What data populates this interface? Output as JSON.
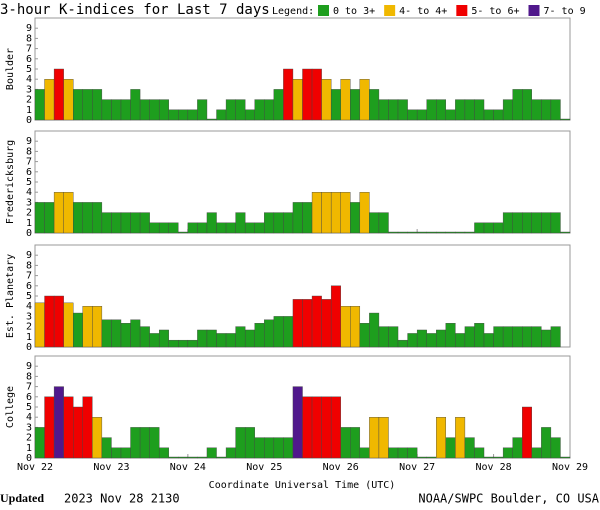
{
  "chart_data": {
    "type": "bar",
    "title": "3-hour K-indices for Last 7 days",
    "legend_title": "Legend:",
    "legend": [
      {
        "label": "0 to 3+",
        "color": "#1e9e1e"
      },
      {
        "label": "4- to 4+",
        "color": "#f0b800"
      },
      {
        "label": "5- to 6+",
        "color": "#f00000"
      },
      {
        "label": "7- to 9",
        "color": "#50188c"
      }
    ],
    "xlabel": "Coordinate Universal Time (UTC)",
    "xlim": [
      0,
      56
    ],
    "xticks": [
      {
        "value": 0,
        "label": "Nov 22"
      },
      {
        "value": 8,
        "label": "Nov 23"
      },
      {
        "value": 16,
        "label": "Nov 24"
      },
      {
        "value": 24,
        "label": "Nov 25"
      },
      {
        "value": 32,
        "label": "Nov 26"
      },
      {
        "value": 40,
        "label": "Nov 27"
      },
      {
        "value": 48,
        "label": "Nov 28"
      },
      {
        "value": 56,
        "label": "Nov 29"
      }
    ],
    "ylim": [
      0,
      10
    ],
    "yticks": [
      0,
      1,
      2,
      3,
      4,
      5,
      6,
      7,
      8,
      9
    ],
    "series": [
      {
        "name": "Boulder",
        "values": [
          3,
          4,
          5,
          4,
          3,
          3,
          3,
          2,
          2,
          2,
          3,
          2,
          2,
          2,
          1,
          1,
          1,
          2,
          0,
          1,
          2,
          2,
          1,
          2,
          2,
          3,
          5,
          4,
          5,
          5,
          4,
          3,
          4,
          3,
          4,
          3,
          2,
          2,
          2,
          1,
          1,
          2,
          2,
          1,
          2,
          2,
          2,
          1,
          1,
          2,
          3,
          3,
          2,
          2,
          2,
          0
        ]
      },
      {
        "name": "Fredericksburg",
        "values": [
          3,
          3,
          4,
          4,
          3,
          3,
          3,
          2,
          2,
          2,
          2,
          2,
          1,
          1,
          1,
          0,
          1,
          1,
          2,
          1,
          1,
          2,
          1,
          1,
          2,
          2,
          2,
          3,
          3,
          4,
          4,
          4,
          4,
          3,
          4,
          2,
          2,
          0,
          0,
          0,
          0,
          0,
          0,
          0,
          0,
          0,
          1,
          1,
          1,
          2,
          2,
          2,
          2,
          2,
          2,
          0
        ]
      },
      {
        "name": "Est. Planetary",
        "values": [
          4.33,
          5,
          5,
          4.33,
          3.33,
          4,
          4,
          2.67,
          2.67,
          2.33,
          2.67,
          2,
          1.33,
          1.67,
          0.67,
          0.67,
          0.67,
          1.67,
          1.67,
          1.33,
          1.33,
          2,
          1.67,
          2.33,
          2.67,
          3,
          3,
          4.67,
          4.67,
          5,
          4.67,
          6,
          4,
          4,
          2.33,
          3.33,
          2,
          2,
          0.67,
          1.33,
          1.67,
          1.33,
          1.67,
          2.33,
          1.33,
          2,
          2.33,
          1.33,
          2,
          2,
          2,
          2,
          2,
          1.67,
          2,
          null
        ]
      },
      {
        "name": "College",
        "values": [
          3,
          6,
          7,
          6,
          5,
          6,
          4,
          2,
          1,
          1,
          3,
          3,
          3,
          1,
          0,
          0,
          0,
          0,
          1,
          0,
          1,
          3,
          3,
          2,
          2,
          2,
          2,
          7,
          6,
          6,
          6,
          6,
          3,
          3,
          1,
          4,
          4,
          1,
          1,
          1,
          0,
          0,
          4,
          2,
          4,
          2,
          1,
          0,
          0,
          1,
          2,
          5,
          1,
          3,
          2,
          0
        ]
      }
    ],
    "footer_label": "Updated",
    "footer_time": "2023 Nov 28 2130",
    "footer_source": "NOAA/SWPC Boulder, CO USA"
  }
}
